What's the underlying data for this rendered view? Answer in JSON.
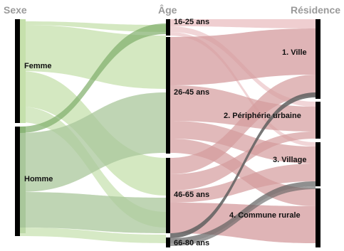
{
  "titles": {
    "sexe": "Sexe",
    "age": "Âge",
    "residence": "Résidence"
  },
  "nodes": {
    "sexe": [
      {
        "id": "femme",
        "label": "Femme"
      },
      {
        "id": "homme",
        "label": "Homme"
      }
    ],
    "age": [
      {
        "id": "a1625",
        "label": "16-25 ans"
      },
      {
        "id": "a2645",
        "label": "26-45 ans"
      },
      {
        "id": "a4665",
        "label": "46-65 ans"
      },
      {
        "id": "a6680",
        "label": "66-80 ans"
      }
    ],
    "residence": [
      {
        "id": "ville",
        "label": "1. Ville"
      },
      {
        "id": "peri",
        "label": "2. Périphérie urbaine"
      },
      {
        "id": "village",
        "label": "3. Village"
      },
      {
        "id": "rurale",
        "label": "4. Commune rurale"
      }
    ]
  },
  "colors": {
    "femme_flow": "#c5e0ac",
    "homme_flow": "#a9c79b",
    "green_dark": "#7fae6a",
    "red_flow": "#d49b9d",
    "red_light": "#e8b9bc",
    "gray_flow": "#5f5f5f",
    "node_bar": "#000000",
    "title": "#9a9a9a"
  }
}
